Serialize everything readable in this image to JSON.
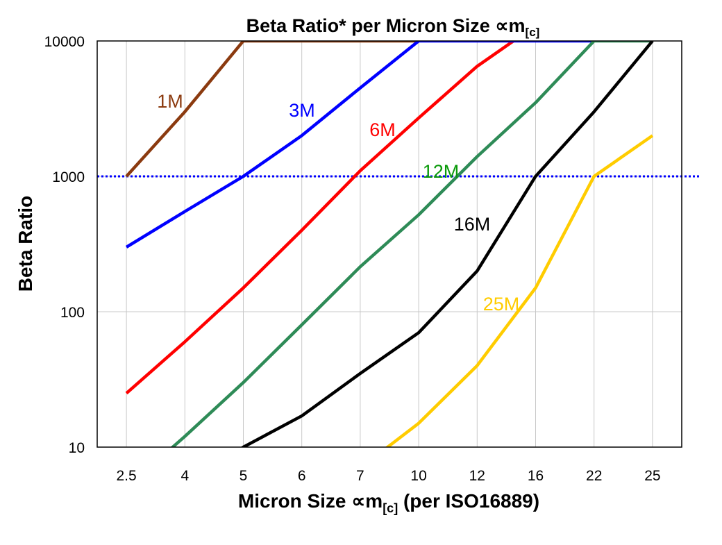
{
  "chart_data": {
    "type": "line",
    "title": "Beta Ratio* per Micron Size ∝m",
    "title_subscript": "[c]",
    "xlabel": "Micron Size ∝m",
    "xlabel_subscript": "[c]",
    "xlabel_suffix": " (per ISO16889)",
    "ylabel": "Beta Ratio",
    "y_scale": "log",
    "ylim": [
      10,
      10000
    ],
    "y_ticks": [
      "10",
      "100",
      "1000",
      "10000"
    ],
    "grid": true,
    "categories": [
      "2.5",
      "4",
      "5",
      "6",
      "7",
      "10",
      "12",
      "16",
      "22",
      "25"
    ],
    "reference_line": {
      "value": 1000,
      "color": "#0000FF",
      "style": "dotted"
    },
    "series": [
      {
        "name": "1M",
        "color": "#8B3A0F",
        "label_color": "#8B3A0F",
        "values": [
          1000,
          3000,
          10000,
          10000,
          10000,
          10000,
          null,
          null,
          null,
          null
        ]
      },
      {
        "name": "6M",
        "color": "#FF0000",
        "label_color": "#FF0000",
        "values": [
          25,
          60,
          150,
          400,
          1100,
          2700,
          6500,
          13000,
          null,
          null
        ]
      },
      {
        "name": "3M",
        "color": "#0000FF",
        "label_color": "#0000FF",
        "values": [
          300,
          550,
          1000,
          2000,
          4500,
          10000,
          10000,
          10000,
          10000,
          null
        ]
      },
      {
        "name": "12M",
        "color": "#2E8B57",
        "label_color": "#0A9A0A",
        "values": [
          5,
          12,
          30,
          80,
          215,
          520,
          1400,
          3500,
          10000,
          10000
        ]
      },
      {
        "name": "16M",
        "color": "#000000",
        "label_color": "#000000",
        "values": [
          null,
          5,
          10,
          17,
          35,
          70,
          200,
          1000,
          3000,
          10000
        ]
      },
      {
        "name": "25M",
        "color": "#FFCC00",
        "label_color": "#FFCC00",
        "values": [
          null,
          null,
          null,
          null,
          7,
          15,
          40,
          150,
          1000,
          2000
        ]
      }
    ]
  }
}
